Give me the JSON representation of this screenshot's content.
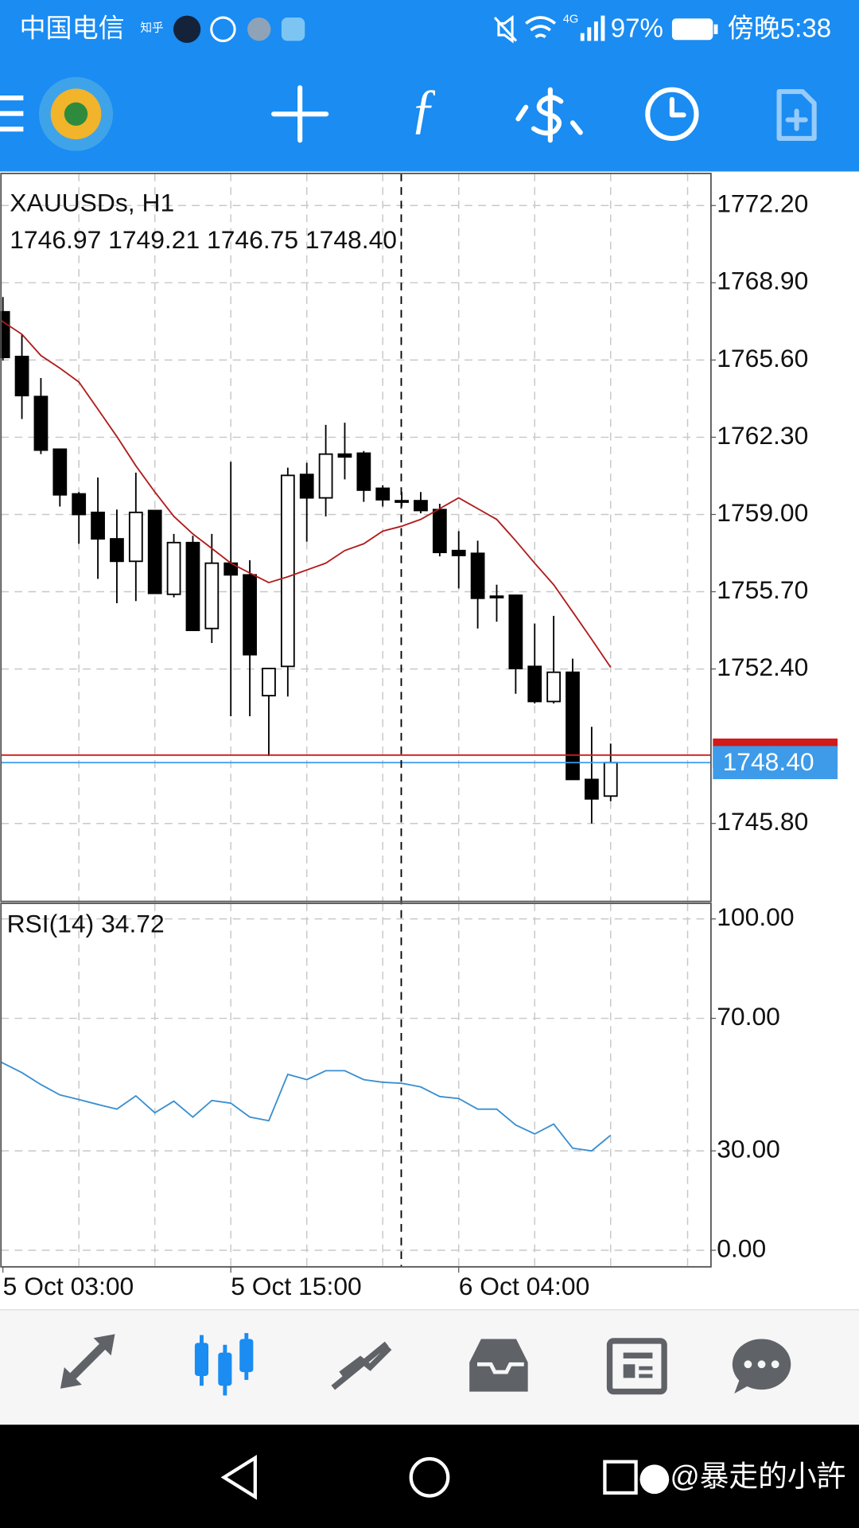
{
  "status_bar": {
    "carrier": "中国电信",
    "app_badge": "知乎",
    "network": "4G",
    "battery": "97%",
    "time": "傍晚5:38"
  },
  "chart_data": [
    {
      "type": "candlestick",
      "title": "XAUUSDs, H1",
      "subtitle": "1746.97 1749.21 1746.75 1748.40",
      "categories": [
        "5 Oct 03:00",
        null,
        null,
        null,
        null,
        null,
        null,
        null,
        null,
        null,
        null,
        null,
        "5 Oct 15:00",
        null,
        null,
        null,
        null,
        null,
        null,
        null,
        null,
        null,
        null,
        null,
        "6 Oct 04:00",
        null,
        null,
        null,
        null,
        null,
        null,
        null,
        null
      ],
      "open": [
        1767.66,
        1765.75,
        1764.04,
        1761.79,
        1759.88,
        1759.09,
        1757.96,
        1757.0,
        1759.17,
        1755.59,
        1757.8,
        1754.13,
        1756.92,
        1756.42,
        1751.26,
        1752.51,
        1760.71,
        1759.71,
        1761.58,
        1761.62,
        1760.12,
        1759.59,
        1759.59,
        1759.21,
        1757.46,
        1757.34,
        1755.51,
        1755.55,
        1752.51,
        1751.01,
        1752.26,
        1747.68,
        1746.97
      ],
      "high": [
        1768.29,
        1766.7,
        1764.83,
        1761.79,
        1759.96,
        1760.58,
        1759.21,
        1760.79,
        1759.17,
        1758.17,
        1758.09,
        1758.17,
        1761.25,
        1757.05,
        1752.42,
        1761.0,
        1761.21,
        1762.83,
        1762.92,
        1761.71,
        1760.25,
        1759.96,
        1759.96,
        1759.46,
        1758.29,
        1757.88,
        1756.0,
        1755.55,
        1754.34,
        1754.67,
        1752.84,
        1749.93,
        1749.21
      ],
      "low": [
        1765.58,
        1763.08,
        1761.58,
        1759.34,
        1757.75,
        1756.25,
        1755.21,
        1755.3,
        1755.63,
        1755.46,
        1754.05,
        1753.51,
        1750.38,
        1750.38,
        1748.68,
        1751.22,
        1757.84,
        1758.92,
        1760.5,
        1759.54,
        1759.34,
        1759.34,
        1759.05,
        1757.21,
        1755.84,
        1754.13,
        1754.42,
        1751.34,
        1750.93,
        1750.93,
        1747.68,
        1745.8,
        1746.75
      ],
      "close": [
        1765.71,
        1764.08,
        1761.75,
        1759.84,
        1759.0,
        1757.96,
        1757.0,
        1759.09,
        1755.63,
        1757.8,
        1754.05,
        1756.92,
        1756.42,
        1753.01,
        1752.42,
        1760.67,
        1759.71,
        1761.58,
        1761.46,
        1760.04,
        1759.63,
        1759.55,
        1759.17,
        1757.38,
        1757.25,
        1755.42,
        1755.46,
        1752.42,
        1751.01,
        1752.26,
        1747.68,
        1746.85,
        1748.4
      ],
      "up_color": "#ffffff",
      "down_color": "#000000",
      "moving_average": {
        "color": "#b01c1c",
        "values": [
          1767.29,
          1766.7,
          1765.79,
          1765.25,
          1764.66,
          1763.5,
          1762.33,
          1761.08,
          1759.96,
          1758.92,
          1758.17,
          1757.55,
          1756.92,
          1756.5,
          1756.09,
          1756.34,
          1756.63,
          1756.92,
          1757.46,
          1757.75,
          1758.29,
          1758.5,
          1758.79,
          1759.25,
          1759.71,
          1759.25,
          1758.79,
          1757.88,
          1756.92,
          1756.0,
          1754.84,
          1753.67,
          1752.47
        ]
      },
      "ask_line": {
        "value": 1748.72,
        "color": "#d11a1a"
      },
      "price_line": {
        "value": 1748.4,
        "label": "1748.40",
        "color": "#3d9be9"
      },
      "ylim": [
        1742.47,
        1773.57
      ],
      "yticks": [
        {
          "value": 1772.2,
          "label": "1772.20"
        },
        {
          "value": 1768.9,
          "label": "1768.90"
        },
        {
          "value": 1765.6,
          "label": "1765.60"
        },
        {
          "value": 1762.3,
          "label": "1762.30"
        },
        {
          "value": 1759,
          "label": "1759.00"
        },
        {
          "value": 1755.7,
          "label": "1755.70"
        },
        {
          "value": 1752.4,
          "label": "1752.40"
        },
        {
          "value": 1745.8,
          "label": "1745.80"
        }
      ],
      "grid": true
    },
    {
      "type": "line",
      "title": "RSI(14) 34.72",
      "color": "#3a8fd0",
      "values": [
        56.8,
        53.6,
        50.0,
        46.9,
        45.5,
        44.0,
        42.6,
        46.6,
        41.5,
        45.0,
        40.2,
        45.2,
        44.4,
        40.2,
        39.1,
        53.1,
        51.5,
        54.2,
        54.2,
        51.5,
        50.7,
        50.4,
        49.3,
        46.4,
        45.8,
        42.6,
        42.6,
        37.8,
        35.1,
        38.1,
        30.8,
        30.0,
        34.72
      ],
      "ylim": [
        -5,
        104.7
      ],
      "yticks": [
        {
          "value": 100,
          "label": "100.00"
        },
        {
          "value": 70,
          "label": "70.00"
        },
        {
          "value": 30,
          "label": "30.00"
        },
        {
          "value": 0,
          "label": "0.00"
        }
      ],
      "grid": true
    }
  ],
  "watermark": "@暴走的小許"
}
